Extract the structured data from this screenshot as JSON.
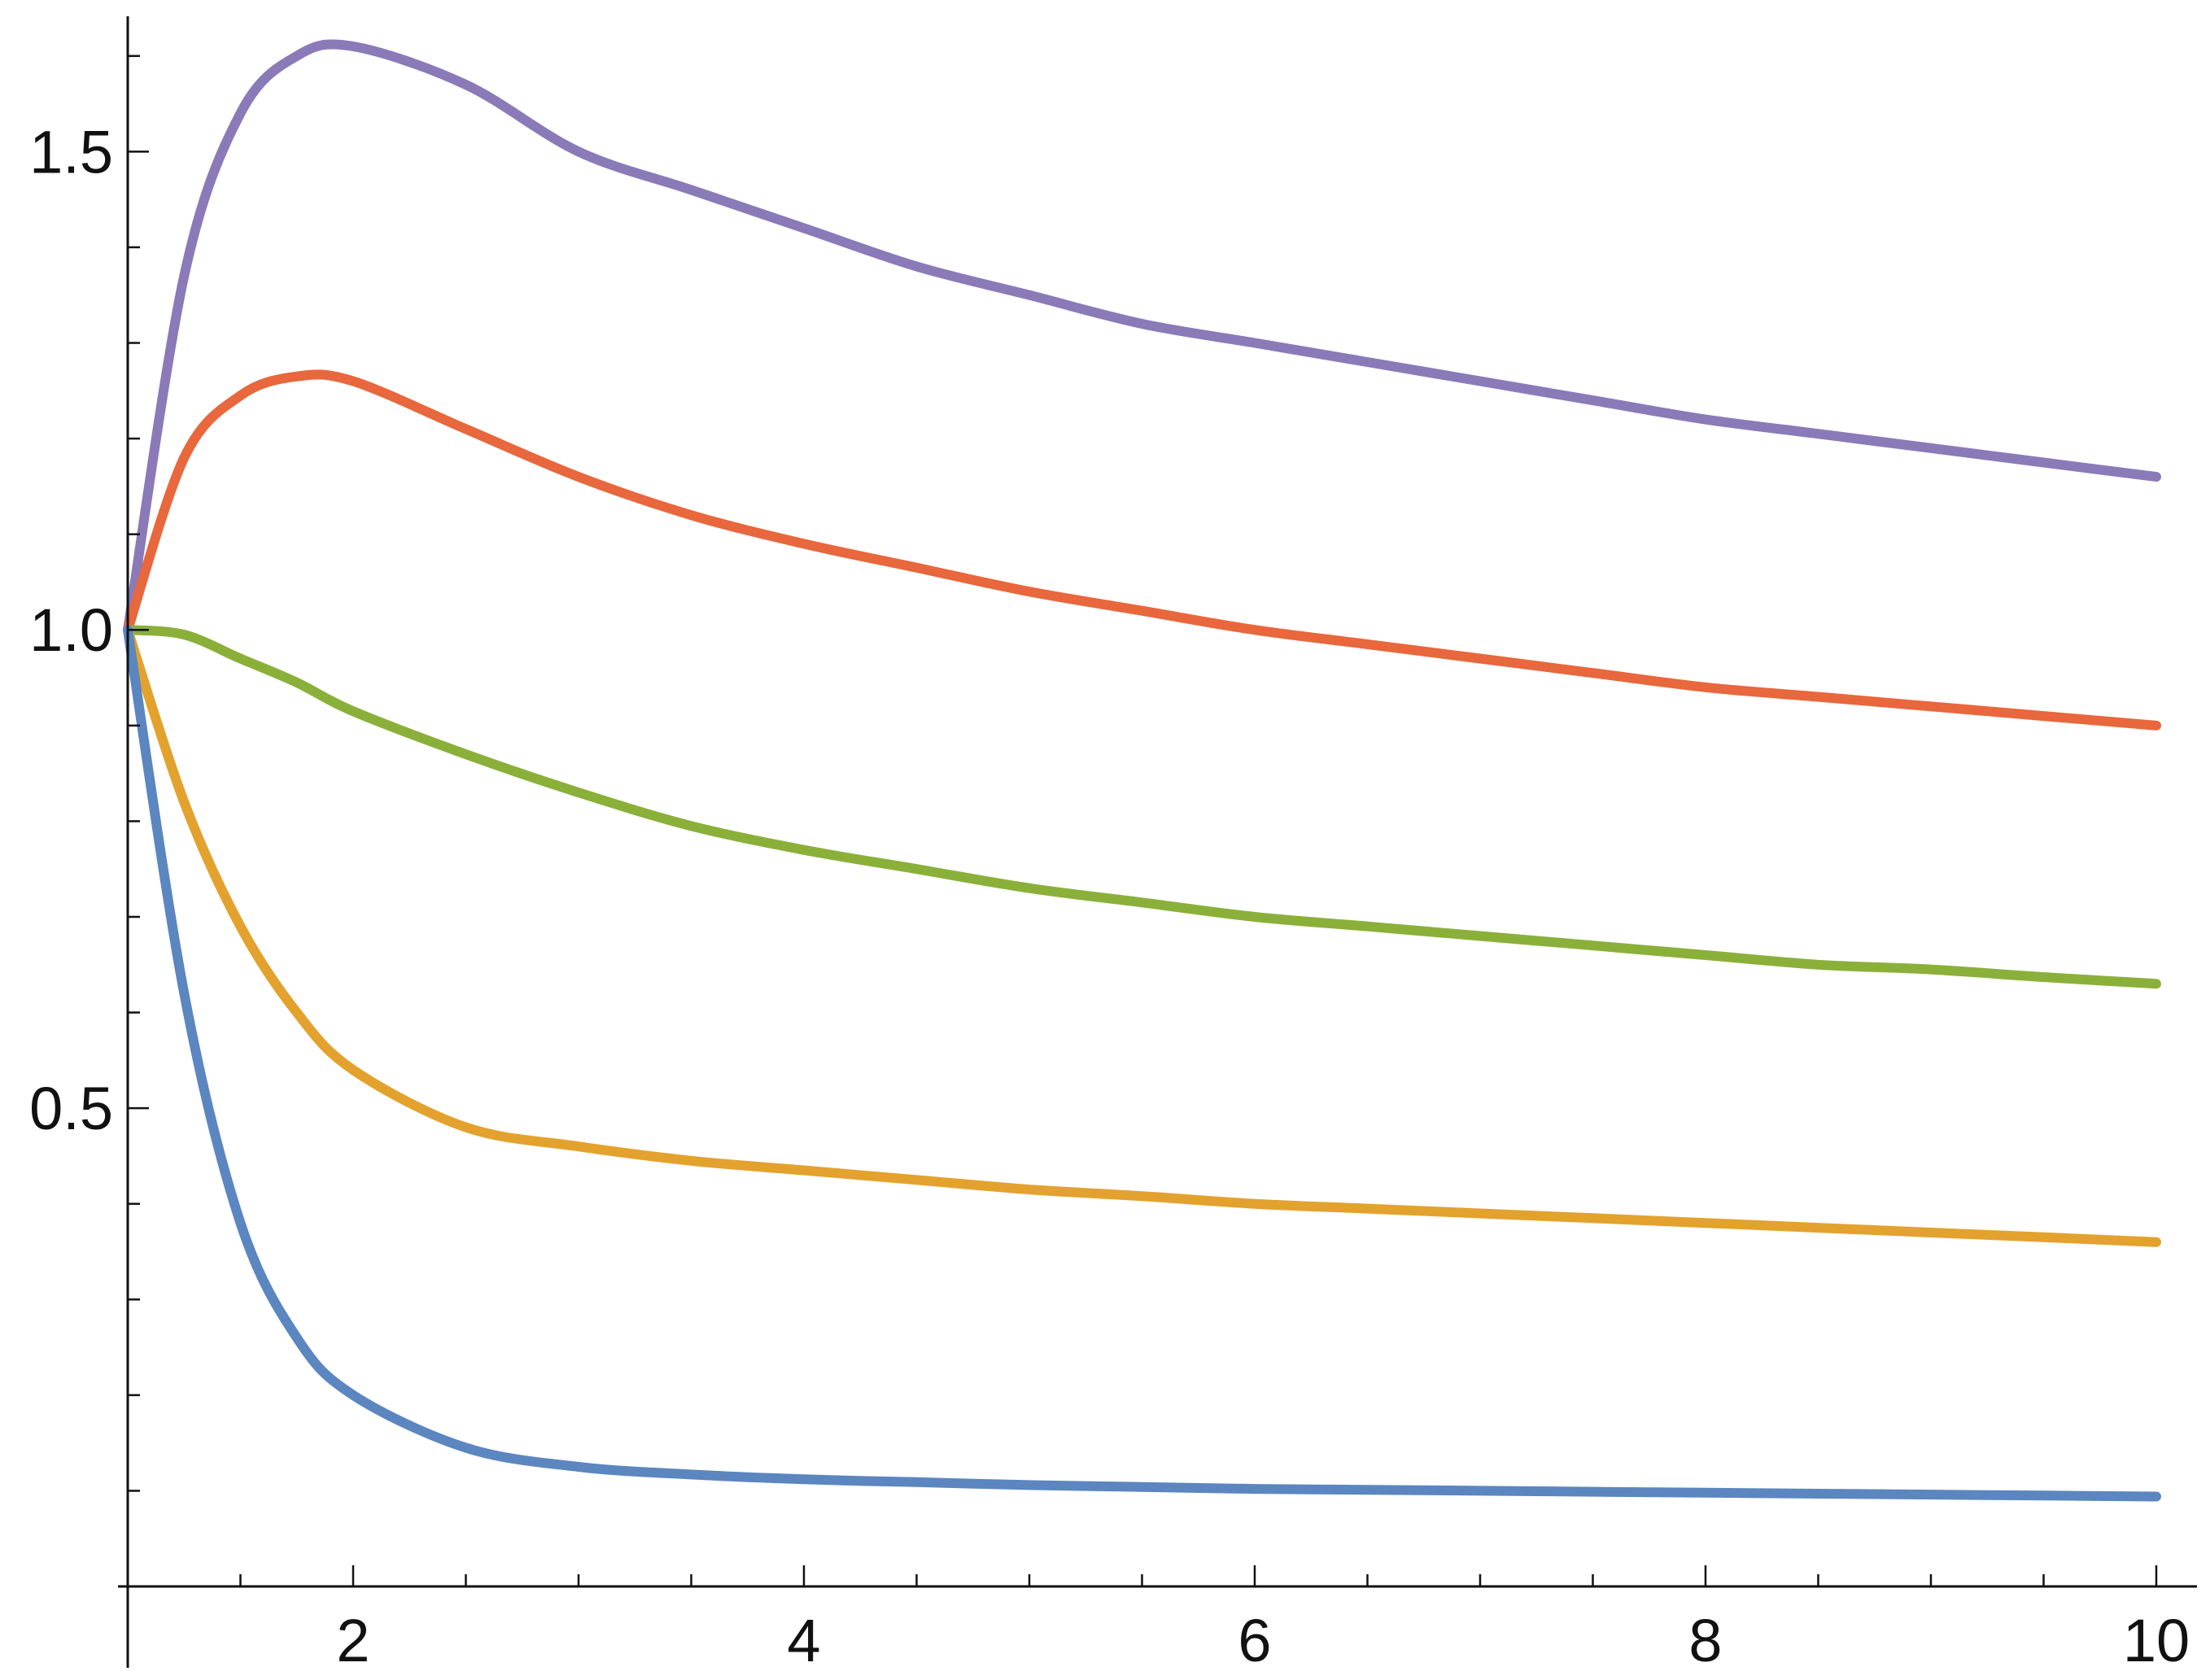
{
  "chart_data": {
    "type": "line",
    "title": "",
    "xlabel": "",
    "ylabel": "",
    "xlim": [
      1,
      10
    ],
    "ylim": [
      0,
      1.65
    ],
    "x_axis_crosses_y": 0,
    "y_axis_crosses_x": 1,
    "grid": false,
    "legend": "none",
    "x_major_ticks": [
      2,
      4,
      6,
      8,
      10
    ],
    "x_tick_labels": [
      "2",
      "4",
      "6",
      "8",
      "10"
    ],
    "x_minor_tick_step": 0.5,
    "y_major_ticks": [
      0.5,
      1.0,
      1.5
    ],
    "y_tick_labels": [
      "0.5",
      "1.0",
      "1.5"
    ],
    "y_minor_tick_step": 0.1,
    "x": [
      1,
      1.25,
      1.5,
      1.75,
      2,
      2.5,
      3,
      3.5,
      4,
      4.5,
      5,
      5.5,
      6,
      6.5,
      7,
      7.5,
      8,
      8.5,
      9,
      9.5,
      10
    ],
    "series": [
      {
        "color": "#8b7ab8",
        "values": [
          1.0,
          1.37,
          1.54,
          1.6,
          1.61,
          1.57,
          1.5,
          1.46,
          1.42,
          1.38,
          1.35,
          1.32,
          1.3,
          1.28,
          1.26,
          1.24,
          1.22,
          1.205,
          1.19,
          1.175,
          1.16
        ]
      },
      {
        "color": "#e8673d",
        "values": [
          1.0,
          1.18,
          1.245,
          1.265,
          1.26,
          1.21,
          1.16,
          1.12,
          1.09,
          1.065,
          1.04,
          1.02,
          1.0,
          0.985,
          0.97,
          0.955,
          0.94,
          0.93,
          0.92,
          0.91,
          0.9
        ]
      },
      {
        "color": "#8bb03a",
        "values": [
          1.0,
          0.995,
          0.97,
          0.945,
          0.915,
          0.87,
          0.83,
          0.795,
          0.77,
          0.75,
          0.73,
          0.715,
          0.7,
          0.69,
          0.68,
          0.67,
          0.66,
          0.65,
          0.645,
          0.637,
          0.63
        ]
      },
      {
        "color": "#e3a22e",
        "values": [
          1.0,
          0.82,
          0.69,
          0.6,
          0.54,
          0.48,
          0.46,
          0.445,
          0.435,
          0.425,
          0.415,
          0.408,
          0.4,
          0.395,
          0.39,
          0.385,
          0.38,
          0.375,
          0.37,
          0.365,
          0.36
        ]
      },
      {
        "color": "#5b86c0",
        "values": [
          1.0,
          0.62,
          0.38,
          0.26,
          0.2,
          0.145,
          0.125,
          0.117,
          0.112,
          0.109,
          0.106,
          0.104,
          0.102,
          0.101,
          0.1,
          0.099,
          0.098,
          0.097,
          0.096,
          0.095,
          0.094
        ]
      }
    ]
  }
}
